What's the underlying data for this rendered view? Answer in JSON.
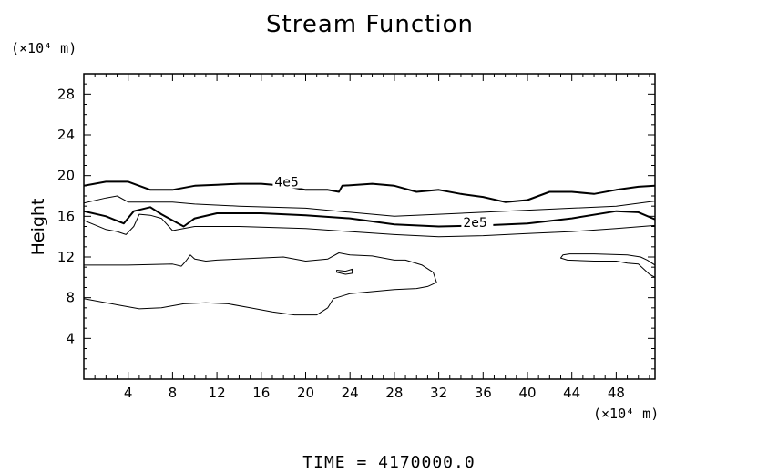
{
  "chart_data": {
    "type": "contour",
    "title": "Stream Function",
    "ylabel": "Height",
    "y_unit": "(×10⁴ m)",
    "x_unit": "(×10⁴ m)",
    "xlim": [
      0,
      51.5
    ],
    "ylim": [
      0,
      30
    ],
    "x_ticks": [
      4,
      8,
      12,
      16,
      20,
      24,
      28,
      32,
      36,
      40,
      44,
      48
    ],
    "y_ticks": [
      4,
      8,
      12,
      16,
      20,
      24,
      28
    ],
    "footer": "TIME = 4170000.0",
    "grid": false,
    "contours": [
      {
        "label": "4e5",
        "label_at": [
          17.2,
          19.3
        ],
        "bold": true,
        "points": [
          [
            0,
            19.0
          ],
          [
            2,
            19.4
          ],
          [
            4,
            19.4
          ],
          [
            6,
            18.6
          ],
          [
            8,
            18.6
          ],
          [
            10,
            19.0
          ],
          [
            12,
            19.1
          ],
          [
            14,
            19.2
          ],
          [
            16,
            19.2
          ],
          [
            18,
            19.0
          ],
          [
            20,
            18.6
          ],
          [
            22,
            18.6
          ],
          [
            23,
            18.4
          ],
          [
            23.3,
            19.0
          ],
          [
            26,
            19.2
          ],
          [
            28,
            19.0
          ],
          [
            30,
            18.4
          ],
          [
            32,
            18.6
          ],
          [
            34,
            18.2
          ],
          [
            36,
            17.9
          ],
          [
            38,
            17.4
          ],
          [
            40,
            17.6
          ],
          [
            42,
            18.4
          ],
          [
            44,
            18.4
          ],
          [
            46,
            18.2
          ],
          [
            48,
            18.6
          ],
          [
            50,
            18.9
          ],
          [
            51.5,
            19.0
          ]
        ]
      },
      {
        "label": "",
        "bold": false,
        "points": [
          [
            0,
            17.3
          ],
          [
            2,
            17.8
          ],
          [
            3,
            18.0
          ],
          [
            4,
            17.4
          ],
          [
            6,
            17.4
          ],
          [
            8,
            17.4
          ],
          [
            10,
            17.2
          ],
          [
            14,
            17.0
          ],
          [
            20,
            16.8
          ],
          [
            24,
            16.4
          ],
          [
            28,
            16.0
          ],
          [
            32,
            16.2
          ],
          [
            36,
            16.4
          ],
          [
            40,
            16.6
          ],
          [
            44,
            16.8
          ],
          [
            48,
            17.0
          ],
          [
            51.5,
            17.5
          ]
        ]
      },
      {
        "label": "2e5",
        "label_at": [
          34.2,
          15.3
        ],
        "bold": true,
        "points": [
          [
            0,
            16.5
          ],
          [
            2,
            16.0
          ],
          [
            3.6,
            15.3
          ],
          [
            4.5,
            16.5
          ],
          [
            6,
            16.9
          ],
          [
            7,
            16.2
          ],
          [
            9,
            15.0
          ],
          [
            10,
            15.8
          ],
          [
            12,
            16.3
          ],
          [
            16,
            16.3
          ],
          [
            20,
            16.1
          ],
          [
            24,
            15.8
          ],
          [
            28,
            15.2
          ],
          [
            32,
            15.0
          ],
          [
            36,
            15.1
          ],
          [
            40,
            15.3
          ],
          [
            44,
            15.8
          ],
          [
            48,
            16.5
          ],
          [
            50,
            16.4
          ],
          [
            51.5,
            15.7
          ]
        ]
      },
      {
        "label": "",
        "bold": false,
        "points": [
          [
            0,
            15.6
          ],
          [
            2,
            14.7
          ],
          [
            3,
            14.5
          ],
          [
            3.8,
            14.2
          ],
          [
            4.5,
            15.0
          ],
          [
            5,
            16.2
          ],
          [
            6,
            16.1
          ],
          [
            7,
            15.8
          ],
          [
            8,
            14.6
          ],
          [
            10,
            15.0
          ],
          [
            14,
            15.0
          ],
          [
            20,
            14.8
          ],
          [
            24,
            14.5
          ],
          [
            28,
            14.2
          ],
          [
            32,
            14.0
          ],
          [
            36,
            14.1
          ],
          [
            40,
            14.3
          ],
          [
            44,
            14.5
          ],
          [
            48,
            14.8
          ],
          [
            51.5,
            15.1
          ]
        ]
      },
      {
        "label": "",
        "bold": false,
        "points": [
          [
            0,
            11.2
          ],
          [
            4,
            11.2
          ],
          [
            8,
            11.3
          ],
          [
            8.8,
            11.1
          ],
          [
            9.2,
            11.6
          ],
          [
            9.6,
            12.2
          ],
          [
            10,
            11.8
          ],
          [
            11,
            11.6
          ],
          [
            12,
            11.7
          ],
          [
            16,
            11.9
          ],
          [
            18,
            12.0
          ],
          [
            20,
            11.6
          ],
          [
            22,
            11.8
          ],
          [
            23,
            12.4
          ],
          [
            24,
            12.2
          ],
          [
            26,
            12.1
          ],
          [
            28,
            11.7
          ],
          [
            29,
            11.7
          ],
          [
            30.5,
            11.2
          ],
          [
            31.5,
            10.5
          ],
          [
            31.8,
            9.5
          ],
          [
            31,
            9.1
          ],
          [
            30,
            8.9
          ],
          [
            28,
            8.8
          ],
          [
            26,
            8.6
          ],
          [
            24,
            8.4
          ],
          [
            22.5,
            7.9
          ],
          [
            22,
            7.0
          ],
          [
            21,
            6.3
          ],
          [
            19,
            6.3
          ],
          [
            17,
            6.6
          ],
          [
            15,
            7.0
          ],
          [
            13,
            7.4
          ],
          [
            11,
            7.5
          ],
          [
            9,
            7.4
          ],
          [
            7,
            7.0
          ],
          [
            5,
            6.9
          ],
          [
            3,
            7.3
          ],
          [
            1,
            7.7
          ],
          [
            0,
            7.9
          ]
        ]
      },
      {
        "label": "",
        "bold": false,
        "closed": true,
        "points": [
          [
            22.8,
            10.7
          ],
          [
            23.6,
            10.6
          ],
          [
            24.2,
            10.8
          ],
          [
            24.2,
            10.4
          ],
          [
            23.6,
            10.3
          ],
          [
            22.8,
            10.5
          ]
        ]
      },
      {
        "label": "",
        "bold": false,
        "points": [
          [
            51.5,
            11.2
          ],
          [
            50.8,
            11.7
          ],
          [
            50.2,
            12.0
          ],
          [
            49,
            12.2
          ],
          [
            46,
            12.3
          ],
          [
            43.8,
            12.3
          ],
          [
            43.2,
            12.2
          ],
          [
            43,
            11.9
          ],
          [
            43.6,
            11.7
          ],
          [
            46,
            11.6
          ],
          [
            48,
            11.6
          ],
          [
            49,
            11.4
          ],
          [
            50,
            11.3
          ],
          [
            51,
            10.3
          ],
          [
            51.5,
            10.0
          ]
        ]
      }
    ]
  }
}
